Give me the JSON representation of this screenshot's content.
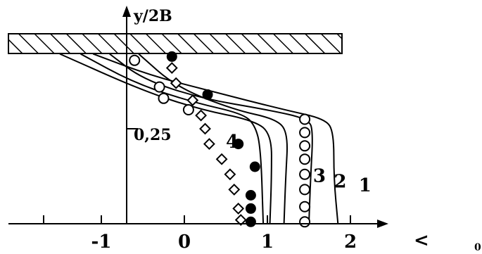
{
  "chart_data": {
    "type": "scatter",
    "title": "",
    "xlabel": "<",
    "ylabel": "y/2B",
    "xlim": [
      -1.7,
      2.2
    ],
    "ylim": [
      0,
      0.47
    ],
    "x_tick_labels": [
      "-1",
      "0",
      "1",
      "2"
    ],
    "x_ticks": [
      -1,
      0,
      1,
      2
    ],
    "y_tick_labels": [
      "0,25"
    ],
    "y_ticks": [
      0.25
    ],
    "wall": "hatched",
    "corner_label": "0",
    "series": [
      {
        "name": "1",
        "kind": "line",
        "points": [
          [
            -1.1,
            0.447
          ],
          [
            -0.4,
            0.39
          ],
          [
            0.3,
            0.35
          ],
          [
            1.2,
            0.3
          ],
          [
            1.7,
            0.276
          ],
          [
            1.8,
            0.24
          ],
          [
            1.8,
            0.12
          ],
          [
            1.85,
            0.0
          ]
        ]
      },
      {
        "name": "2",
        "kind": "line",
        "points": [
          [
            -0.9,
            0.447
          ],
          [
            -0.5,
            0.38
          ],
          [
            0.2,
            0.33
          ],
          [
            1.0,
            0.3
          ],
          [
            1.5,
            0.276
          ],
          [
            1.55,
            0.24
          ],
          [
            1.52,
            0.12
          ],
          [
            1.5,
            0.0
          ]
        ]
      },
      {
        "name": "3",
        "kind": "line",
        "points": [
          [
            -0.55,
            0.447
          ],
          [
            -0.1,
            0.36
          ],
          [
            0.6,
            0.3
          ],
          [
            1.1,
            0.276
          ],
          [
            1.25,
            0.24
          ],
          [
            1.22,
            0.12
          ],
          [
            1.2,
            0.0
          ]
        ]
      },
      {
        "name": "4",
        "kind": "line",
        "points": [
          [
            -1.5,
            0.447
          ],
          [
            -0.5,
            0.35
          ],
          [
            0.2,
            0.3
          ],
          [
            0.8,
            0.274
          ],
          [
            1.05,
            0.24
          ],
          [
            1.05,
            0.12
          ],
          [
            1.03,
            0.0
          ]
        ]
      },
      {
        "name": "",
        "kind": "line",
        "points": [
          [
            -1.25,
            0.447
          ],
          [
            -0.6,
            0.37
          ],
          [
            0.1,
            0.32
          ],
          [
            0.7,
            0.29
          ],
          [
            0.85,
            0.26
          ],
          [
            0.92,
            0.2
          ],
          [
            0.95,
            0.0
          ]
        ]
      },
      {
        "name": "",
        "kind": "circle-open",
        "points": [
          [
            -0.6,
            0.43
          ],
          [
            -0.3,
            0.36
          ],
          [
            -0.25,
            0.33
          ],
          [
            0.05,
            0.3
          ],
          [
            1.45,
            0.275
          ],
          [
            1.45,
            0.24
          ],
          [
            1.45,
            0.205
          ],
          [
            1.45,
            0.17
          ],
          [
            1.45,
            0.13
          ],
          [
            1.45,
            0.09
          ],
          [
            1.45,
            0.045
          ],
          [
            1.45,
            0.005
          ]
        ]
      },
      {
        "name": "",
        "kind": "circle-filled",
        "points": [
          [
            -0.15,
            0.44
          ],
          [
            0.28,
            0.34
          ],
          [
            0.65,
            0.21
          ],
          [
            0.85,
            0.15
          ],
          [
            0.8,
            0.075
          ],
          [
            0.8,
            0.04
          ],
          [
            0.8,
            0.005
          ]
        ]
      },
      {
        "name": "",
        "kind": "diamond",
        "points": [
          [
            -0.15,
            0.41
          ],
          [
            -0.1,
            0.37
          ],
          [
            0.1,
            0.325
          ],
          [
            0.2,
            0.285
          ],
          [
            0.25,
            0.25
          ],
          [
            0.3,
            0.21
          ],
          [
            0.45,
            0.17
          ],
          [
            0.55,
            0.13
          ],
          [
            0.6,
            0.09
          ],
          [
            0.65,
            0.04
          ],
          [
            0.68,
            0.01
          ]
        ]
      }
    ],
    "labels": [
      {
        "text": "4",
        "x": 0.5,
        "y": 0.2
      },
      {
        "text": "3",
        "x": 1.55,
        "y": 0.11
      },
      {
        "text": "2",
        "x": 1.8,
        "y": 0.095
      },
      {
        "text": "1",
        "x": 2.1,
        "y": 0.085
      }
    ]
  }
}
